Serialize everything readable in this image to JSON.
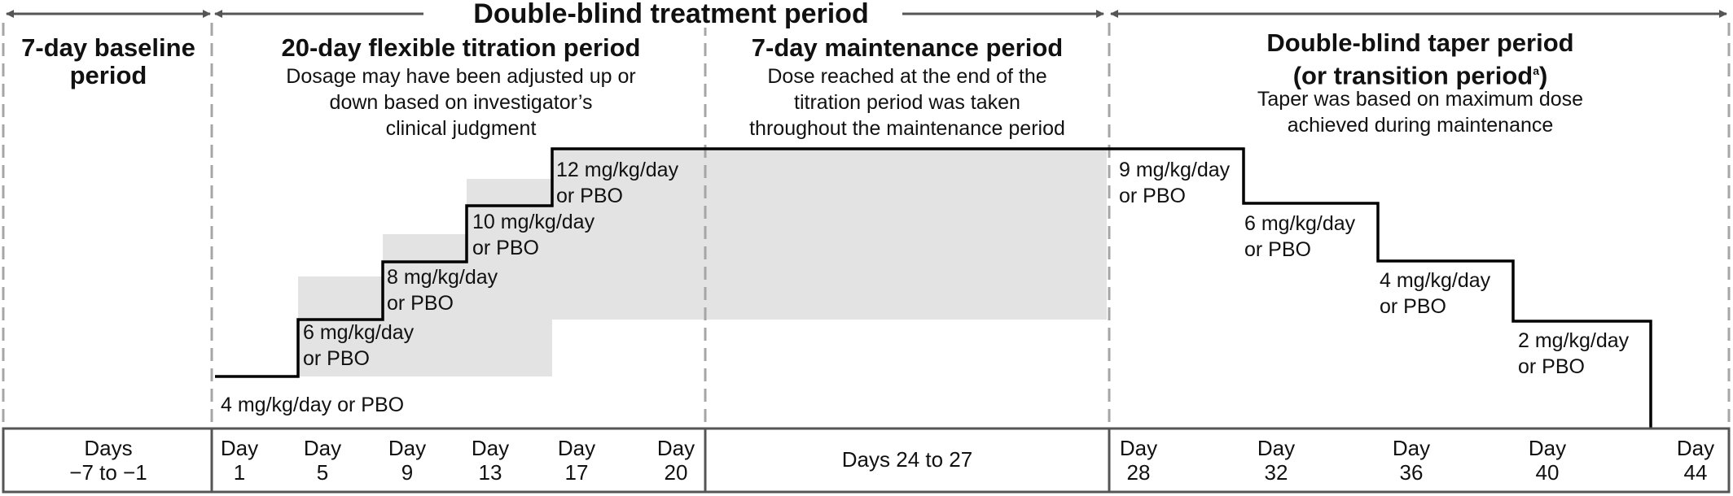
{
  "treatment_title": "Double-blind treatment period",
  "periods": {
    "baseline": {
      "title_line1": "7-day baseline",
      "title_line2": "period"
    },
    "titration": {
      "title": "20-day flexible titration period",
      "desc_line1": "Dosage may have been adjusted up or",
      "desc_line2": "down based on investigator’s",
      "desc_line3": "clinical judgment"
    },
    "maintenance": {
      "title": "7-day maintenance period",
      "desc_line1": "Dose reached at the end of the",
      "desc_line2": "titration period was taken",
      "desc_line3": "throughout the maintenance period"
    },
    "taper": {
      "title_line1": "Double-blind taper period",
      "title_line2": "(or transition period",
      "title_line2_sup": "a",
      "title_line2_end": ")",
      "desc_line1": "Taper was based on maximum dose",
      "desc_line2": "achieved during maintenance"
    }
  },
  "doses": [
    {
      "id": "d4",
      "line1": "4 mg/kg/day or PBO",
      "line2": ""
    },
    {
      "id": "d6",
      "line1": "6 mg/kg/day",
      "line2": "or PBO"
    },
    {
      "id": "d8",
      "line1": "8 mg/kg/day",
      "line2": "or PBO"
    },
    {
      "id": "d10",
      "line1": "10 mg/kg/day",
      "line2": "or PBO"
    },
    {
      "id": "d12",
      "line1": "12 mg/kg/day",
      "line2": "or PBO"
    },
    {
      "id": "t9",
      "line1": "9 mg/kg/day",
      "line2": "or PBO"
    },
    {
      "id": "t6",
      "line1": "6 mg/kg/day",
      "line2": "or PBO"
    },
    {
      "id": "t4",
      "line1": "4 mg/kg/day",
      "line2": "or PBO"
    },
    {
      "id": "t2",
      "line1": "2 mg/kg/day",
      "line2": "or PBO"
    }
  ],
  "timeline": [
    {
      "line1": "Days",
      "line2": "−7 to −1"
    },
    {
      "line1": "Day",
      "line2": "1"
    },
    {
      "line1": "Day",
      "line2": "5"
    },
    {
      "line1": "Day",
      "line2": "9"
    },
    {
      "line1": "Day",
      "line2": "13"
    },
    {
      "line1": "Day",
      "line2": "17"
    },
    {
      "line1": "Day",
      "line2": "20"
    },
    {
      "line1": "Days 24 to 27",
      "line2": ""
    },
    {
      "line1": "Day",
      "line2": "28"
    },
    {
      "line1": "Day",
      "line2": "32"
    },
    {
      "line1": "Day",
      "line2": "36"
    },
    {
      "line1": "Day",
      "line2": "40"
    },
    {
      "line1": "Day",
      "line2": "44"
    }
  ],
  "colors": {
    "shade": "#e3e3e3",
    "line": "#000000",
    "divider": "#a6a6a6",
    "arrow": "#555555"
  }
}
